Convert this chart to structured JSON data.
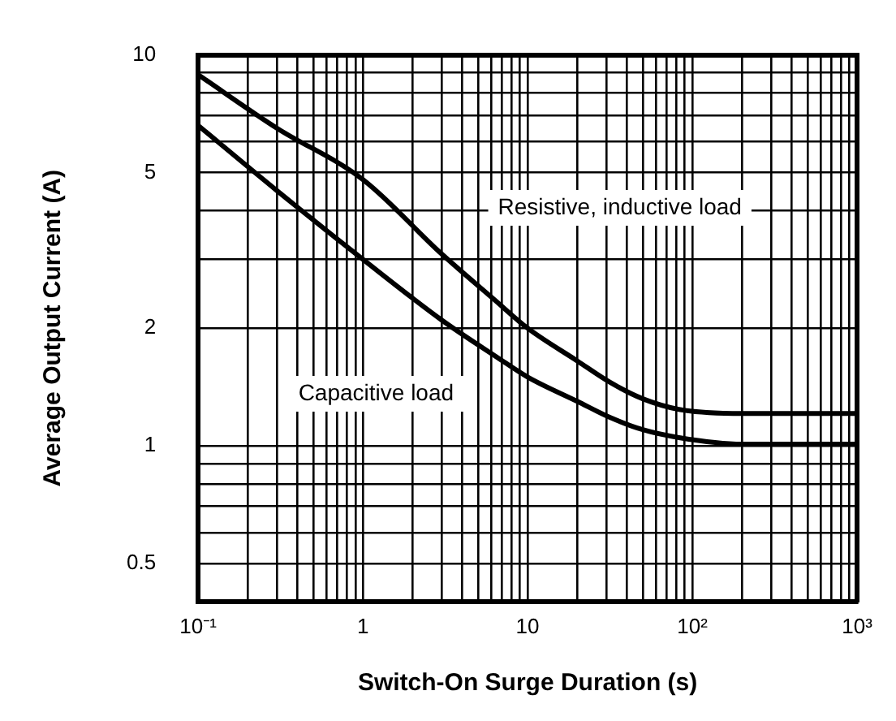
{
  "chart_data": {
    "type": "line",
    "xlabel": "Switch-On Surge Duration (s)",
    "ylabel": "Average Output Current (A)",
    "log": "xy",
    "grid": true,
    "legend": false,
    "marker": "none",
    "line_style": "solid",
    "xlim": [
      0.1,
      1000
    ],
    "ylim": [
      0.4,
      10
    ],
    "xticks": [
      {
        "value": 0.1,
        "label": "10⁻¹"
      },
      {
        "value": 0.2,
        "label": null
      },
      {
        "value": 0.3,
        "label": null
      },
      {
        "value": 0.4,
        "label": null
      },
      {
        "value": 0.5,
        "label": null
      },
      {
        "value": 0.6,
        "label": null
      },
      {
        "value": 0.7,
        "label": null
      },
      {
        "value": 0.8,
        "label": null
      },
      {
        "value": 0.9,
        "label": null
      },
      1,
      {
        "value": 2,
        "label": null
      },
      {
        "value": 3,
        "label": null
      },
      {
        "value": 4,
        "label": null
      },
      {
        "value": 5,
        "label": null
      },
      {
        "value": 6,
        "label": null
      },
      {
        "value": 7,
        "label": null
      },
      {
        "value": 8,
        "label": null
      },
      {
        "value": 9,
        "label": null
      },
      10,
      {
        "value": 20,
        "label": null
      },
      {
        "value": 30,
        "label": null
      },
      {
        "value": 40,
        "label": null
      },
      {
        "value": 50,
        "label": null
      },
      {
        "value": 60,
        "label": null
      },
      {
        "value": 70,
        "label": null
      },
      {
        "value": 80,
        "label": null
      },
      {
        "value": 90,
        "label": null
      },
      {
        "value": 100,
        "label": "10²"
      },
      {
        "value": 200,
        "label": null
      },
      {
        "value": 300,
        "label": null
      },
      {
        "value": 400,
        "label": null
      },
      {
        "value": 500,
        "label": null
      },
      {
        "value": 600,
        "label": null
      },
      {
        "value": 700,
        "label": null
      },
      {
        "value": 800,
        "label": null
      },
      {
        "value": 900,
        "label": null
      },
      {
        "value": 1000,
        "label": "10³"
      }
    ],
    "yticks": [
      0.5,
      {
        "value": 0.6,
        "label": null
      },
      {
        "value": 0.7,
        "label": null
      },
      {
        "value": 0.8,
        "label": null
      },
      {
        "value": 0.9,
        "label": null
      },
      1,
      2,
      {
        "value": 3,
        "label": null
      },
      {
        "value": 4,
        "label": null
      },
      5,
      {
        "value": 6,
        "label": null
      },
      {
        "value": 7,
        "label": null
      },
      {
        "value": 8,
        "label": null
      },
      {
        "value": 9,
        "label": null
      },
      10
    ],
    "series": [
      {
        "name": "Resistive, inductive load",
        "color": "#000000",
        "x": [
          0.1,
          0.3,
          1,
          3,
          6.4,
          10,
          20,
          32,
          50,
          83,
          200,
          1000
        ],
        "values": [
          8.9,
          6.5,
          4.8,
          3.1,
          2.35,
          2.0,
          1.65,
          1.45,
          1.32,
          1.24,
          1.21,
          1.21
        ]
      },
      {
        "name": "Capacitive load",
        "color": "#000000",
        "x": [
          0.1,
          0.3,
          1,
          3,
          6.6,
          10,
          20,
          32,
          50,
          83,
          200,
          1000
        ],
        "values": [
          6.6,
          4.5,
          3.0,
          2.1,
          1.68,
          1.5,
          1.3,
          1.18,
          1.1,
          1.05,
          1.01,
          1.01
        ]
      }
    ]
  }
}
